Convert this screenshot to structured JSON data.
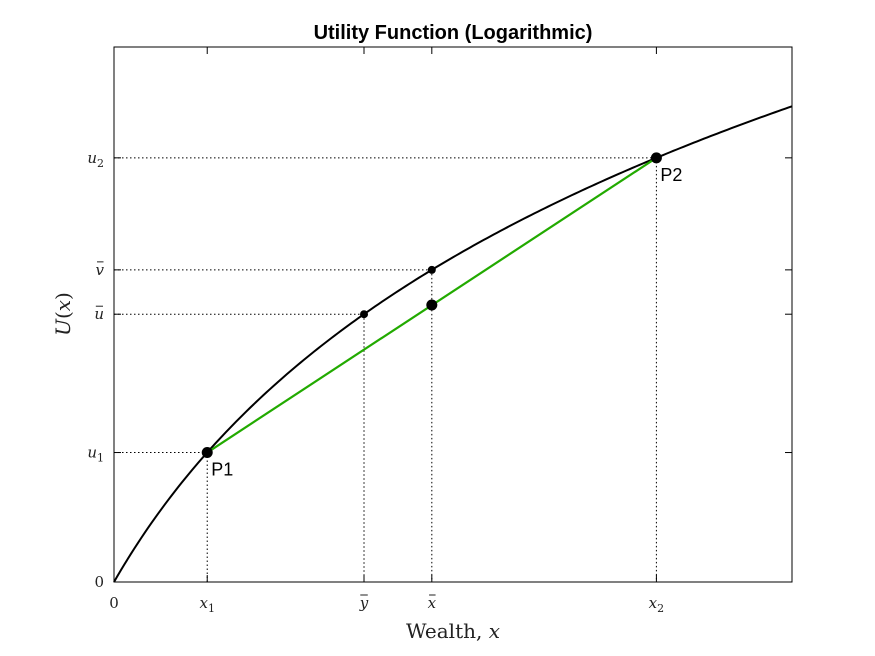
{
  "chart_data": {
    "type": "line",
    "title": "Utility Function (Logarithmic)",
    "xlabel": "Wealth, x",
    "ylabel": "U(x)",
    "function": "U(x) = ln(1 + x)",
    "xlim": [
      0,
      4.0
    ],
    "ylim": [
      0,
      1.81
    ],
    "series": [
      {
        "kind": "curve",
        "color": "#000000"
      },
      {
        "kind": "chord",
        "color": "#22aa00",
        "from": "P1",
        "to": "P2"
      }
    ],
    "points": [
      {
        "id": "P1",
        "label": "P1",
        "x": 0.55,
        "y": 0.438,
        "size": "large"
      },
      {
        "id": "P2",
        "label": "P2",
        "x": 3.2,
        "y": 1.435,
        "size": "large"
      },
      {
        "id": "chord_mean",
        "label": "",
        "x": 1.875,
        "y": 0.937,
        "size": "large"
      },
      {
        "id": "curve_at_ybar",
        "label": "",
        "x": 1.475,
        "y": 0.906,
        "size": "small"
      },
      {
        "id": "curve_at_xbar",
        "label": "",
        "x": 1.875,
        "y": 1.056,
        "size": "small"
      }
    ],
    "xticks": [
      {
        "value": 0,
        "label": "0",
        "base": "0",
        "sub": "",
        "bar": false
      },
      {
        "value": 0.55,
        "label": "x1",
        "base": "x",
        "sub": "1",
        "bar": false
      },
      {
        "value": 1.475,
        "label": "ȳ",
        "base": "y",
        "sub": "",
        "bar": true
      },
      {
        "value": 1.875,
        "label": "x̄",
        "base": "x",
        "sub": "",
        "bar": true
      },
      {
        "value": 3.2,
        "label": "x2",
        "base": "x",
        "sub": "2",
        "bar": false
      }
    ],
    "yticks": [
      {
        "value": 0,
        "label": "0",
        "base": "0",
        "sub": "",
        "bar": false
      },
      {
        "value": 0.438,
        "label": "u1",
        "base": "u",
        "sub": "1",
        "bar": false
      },
      {
        "value": 0.906,
        "label": "ū",
        "base": "u",
        "sub": "",
        "bar": true
      },
      {
        "value": 1.056,
        "label": "v̄",
        "base": "v",
        "sub": "",
        "bar": true
      },
      {
        "value": 1.435,
        "label": "u2",
        "base": "u",
        "sub": "2",
        "bar": false
      }
    ],
    "guides": [
      {
        "x": 0.55,
        "y": 0.438
      },
      {
        "x": 1.475,
        "y": 0.906
      },
      {
        "x": 1.875,
        "y": 1.056
      },
      {
        "x": 3.2,
        "y": 1.435
      }
    ],
    "grid": false
  }
}
